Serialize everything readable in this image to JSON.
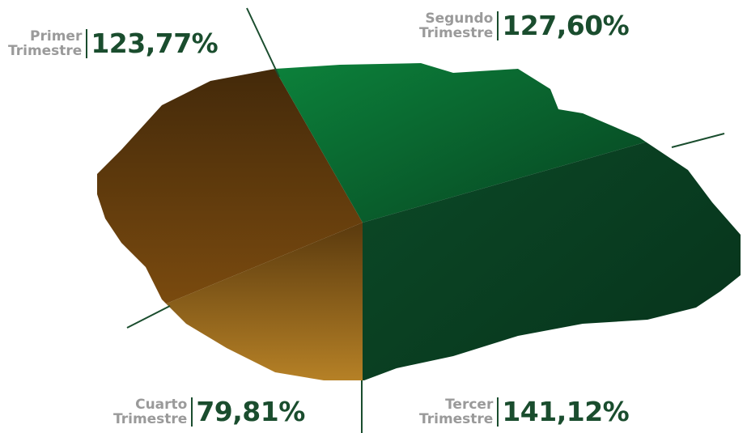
{
  "sections": [
    {
      "label": [
        "Primer",
        "Trimestre"
      ],
      "value": "123,77%"
    },
    {
      "label": [
        "Segundo",
        "Trimestre"
      ],
      "value": "127,60%"
    },
    {
      "label": [
        "Tercer",
        "Trimestre"
      ],
      "value": "141,12%"
    },
    {
      "label": [
        "Cuarto",
        "Trimestre"
      ],
      "value": "79,81%"
    }
  ]
}
